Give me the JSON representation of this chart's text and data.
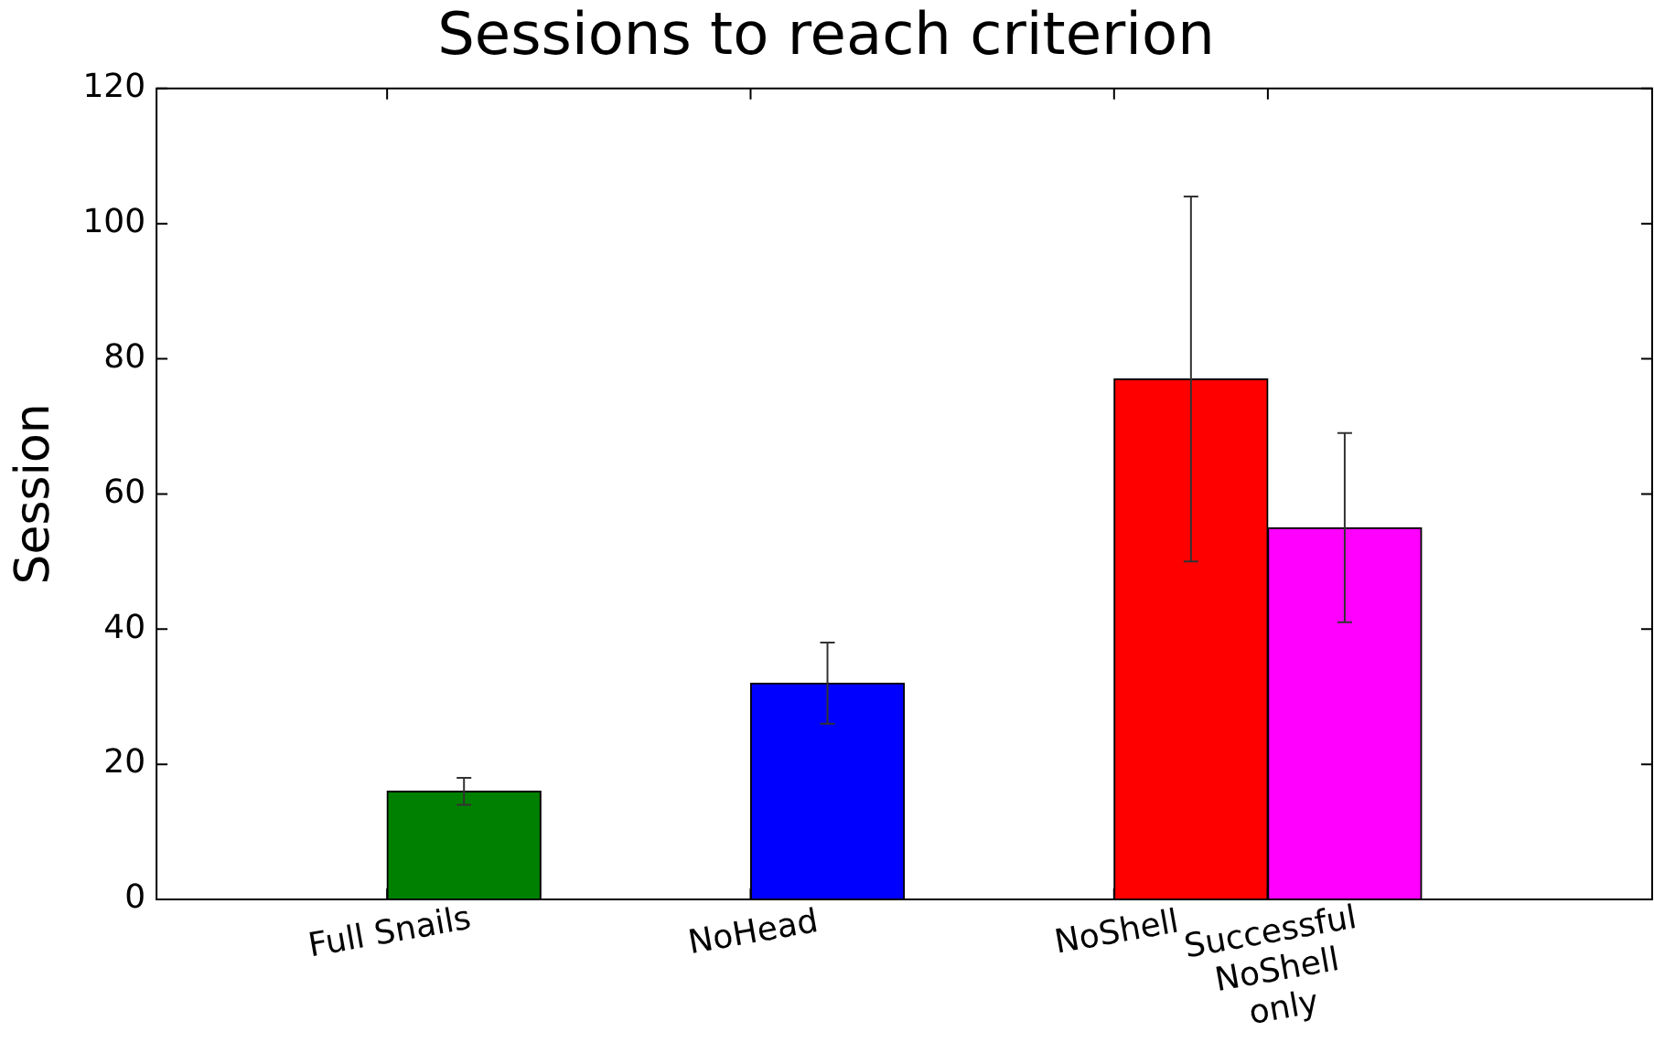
{
  "chart_data": {
    "type": "bar",
    "title": "Sessions to reach criterion",
    "ylabel": "Session",
    "categories": [
      "Full Snails",
      "NoHead",
      "NoShell",
      "Successful NoShell only"
    ],
    "values": [
      16,
      32,
      77,
      55
    ],
    "colors": [
      "#008000",
      "#0000ff",
      "#ff0000",
      "#ff00ff"
    ],
    "errors": [
      2,
      6,
      27,
      14
    ],
    "ylim": [
      0,
      120
    ],
    "yticks": [
      0,
      20,
      40,
      60,
      80,
      100,
      120
    ],
    "grid": false,
    "legend": false
  }
}
